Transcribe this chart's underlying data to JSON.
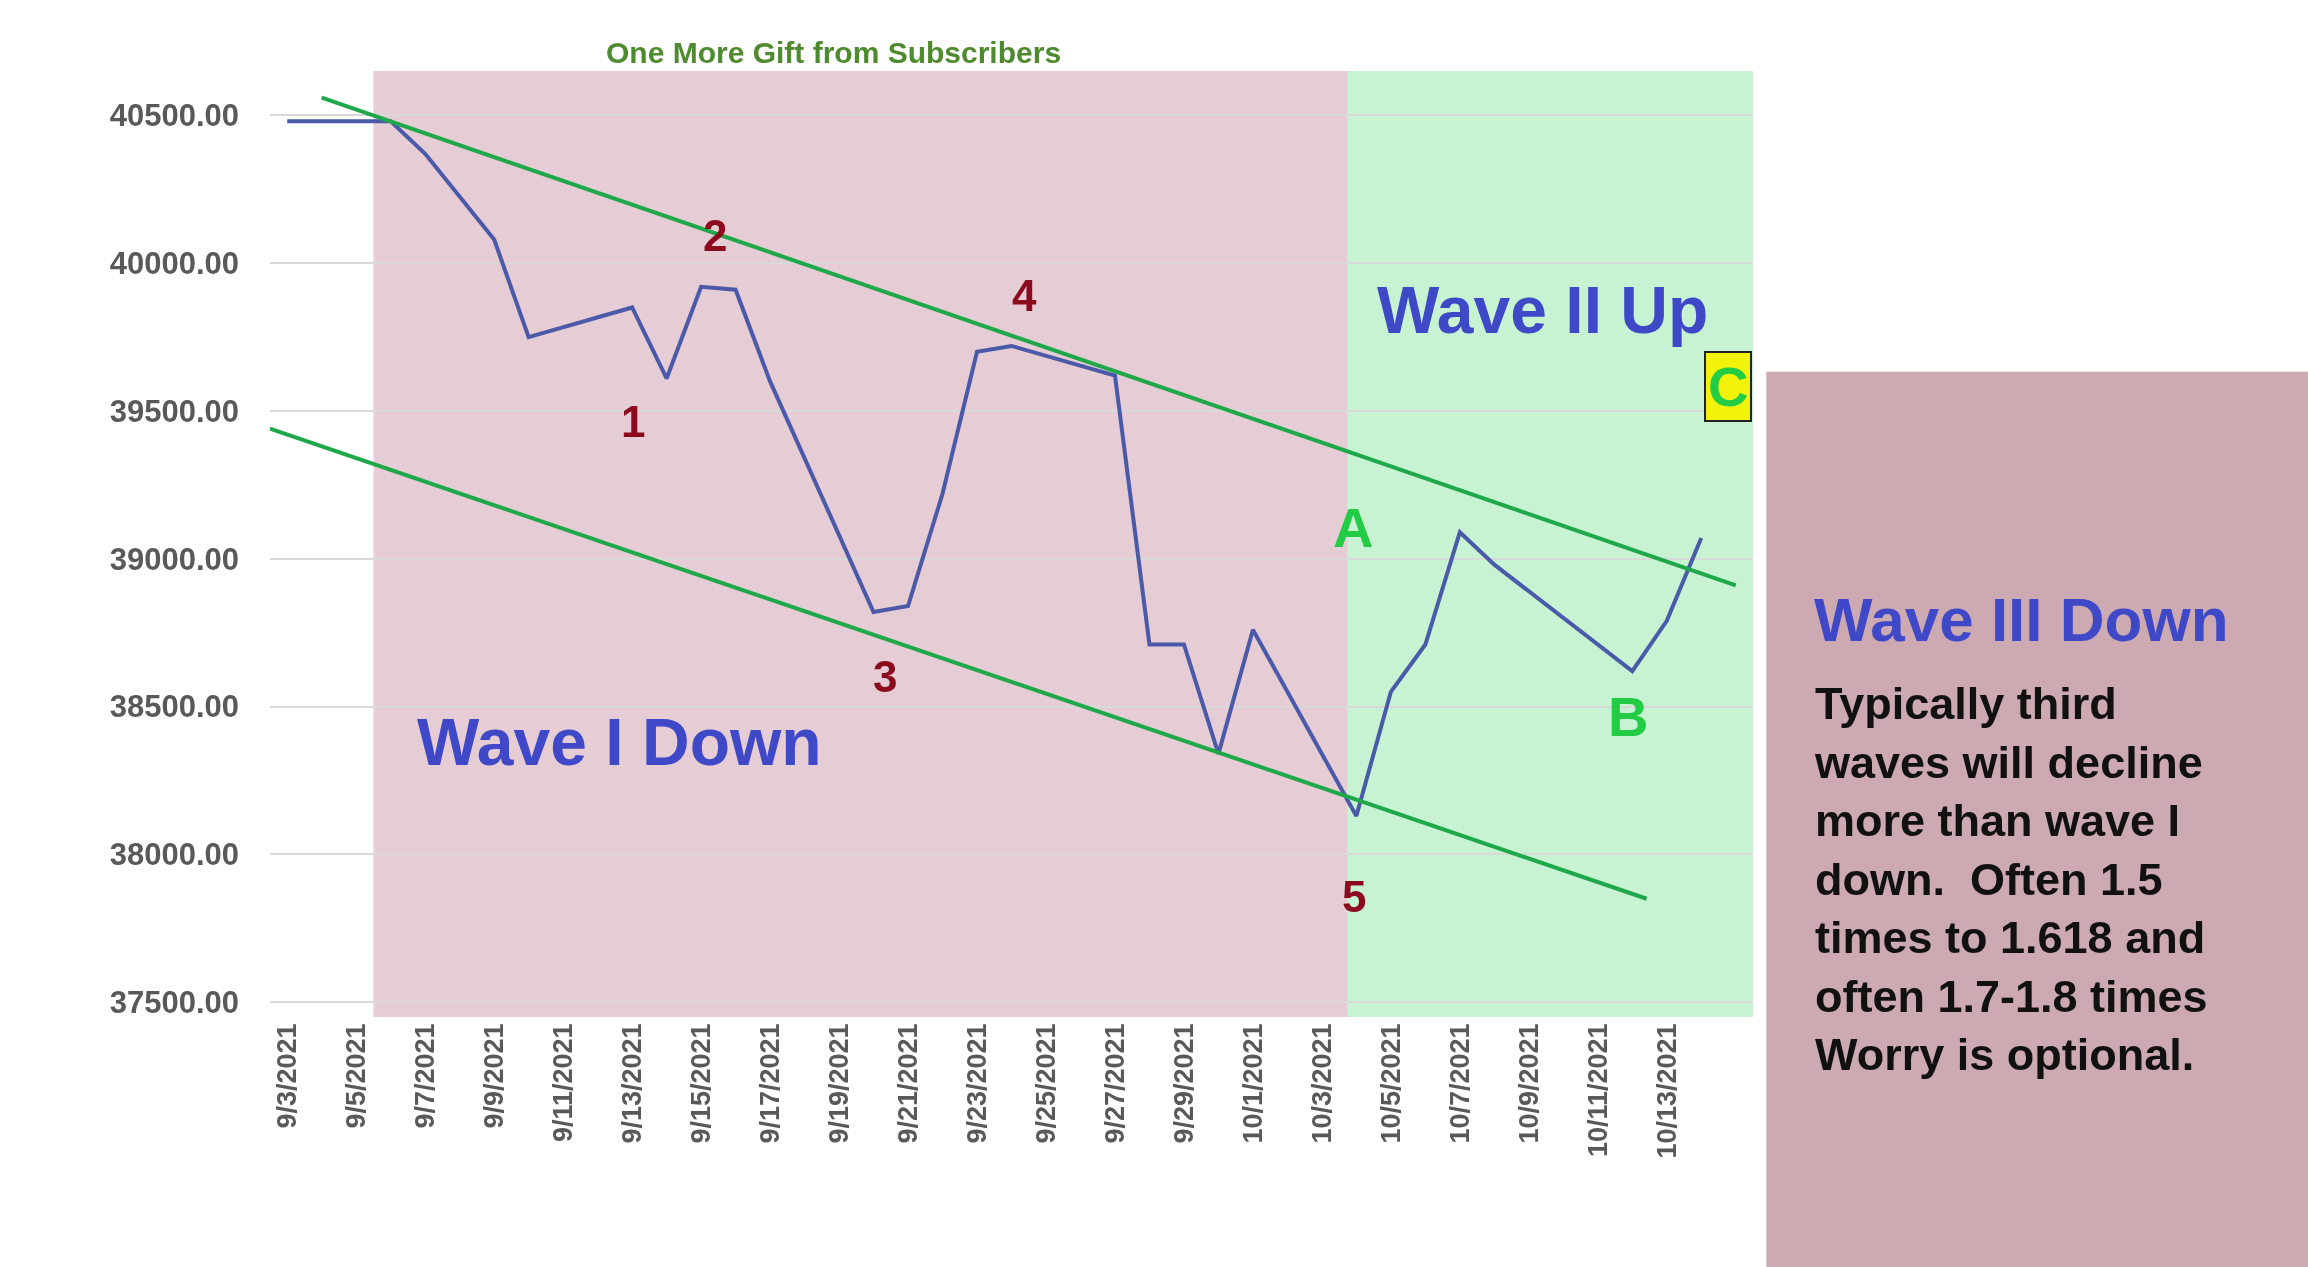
{
  "chart_data": {
    "type": "line",
    "title": "One More Gift from Subscribers",
    "x": [
      "2021-09-03",
      "2021-09-06",
      "2021-09-07",
      "2021-09-09",
      "2021-09-10",
      "2021-09-13",
      "2021-09-14",
      "2021-09-15",
      "2021-09-16",
      "2021-09-17",
      "2021-09-20",
      "2021-09-21",
      "2021-09-22",
      "2021-09-23",
      "2021-09-24",
      "2021-09-27",
      "2021-09-28",
      "2021-09-29",
      "2021-09-30",
      "2021-10-01",
      "2021-10-04",
      "2021-10-05",
      "2021-10-06",
      "2021-10-07",
      "2021-10-08",
      "2021-10-12",
      "2021-10-13",
      "2021-10-14"
    ],
    "series": [
      {
        "color": "#4a5aa8",
        "values": [
          40480,
          40480,
          40370,
          40080,
          39750,
          39850,
          39610,
          39920,
          39910,
          39600,
          38820,
          38840,
          39220,
          39700,
          39720,
          39620,
          38710,
          38710,
          38340,
          38760,
          38130,
          38550,
          38710,
          39090,
          38980,
          38620,
          38790,
          39070
        ]
      },
      {
        "type": "line",
        "x": [
          "2021-09-04",
          "2021-10-15"
        ],
        "color": "#1fa84a",
        "values": [
          40560,
          38910
        ]
      },
      {
        "type": "line",
        "x": [
          "2021-09-02T12:00",
          "2021-10-12T10:00"
        ],
        "color": "#1fa84a",
        "values": [
          39440,
          37850
        ]
      }
    ],
    "xlim": [
      "2021-09-02T12:00",
      "2021-10-15T12:00"
    ],
    "xticks": [
      {
        "value": "2021-09-03",
        "label": "9/3/2021"
      },
      {
        "value": "2021-09-05",
        "label": "9/5/2021"
      },
      {
        "value": "2021-09-07",
        "label": "9/7/2021"
      },
      {
        "value": "2021-09-09",
        "label": "9/9/2021"
      },
      {
        "value": "2021-09-11",
        "label": "9/11/2021"
      },
      {
        "value": "2021-09-13",
        "label": "9/13/2021"
      },
      {
        "value": "2021-09-15",
        "label": "9/15/2021"
      },
      {
        "value": "2021-09-17",
        "label": "9/17/2021"
      },
      {
        "value": "2021-09-19",
        "label": "9/19/2021"
      },
      {
        "value": "2021-09-21",
        "label": "9/21/2021"
      },
      {
        "value": "2021-09-23",
        "label": "9/23/2021"
      },
      {
        "value": "2021-09-25",
        "label": "9/25/2021"
      },
      {
        "value": "2021-09-27",
        "label": "9/27/2021"
      },
      {
        "value": "2021-09-29",
        "label": "9/29/2021"
      },
      {
        "value": "2021-10-01",
        "label": "10/1/2021"
      },
      {
        "value": "2021-10-03",
        "label": "10/3/2021"
      },
      {
        "value": "2021-10-05",
        "label": "10/5/2021"
      },
      {
        "value": "2021-10-07",
        "label": "10/7/2021"
      },
      {
        "value": "2021-10-09",
        "label": "10/9/2021"
      },
      {
        "value": "2021-10-11",
        "label": "10/11/2021"
      },
      {
        "value": "2021-10-13",
        "label": "10/13/2021"
      }
    ],
    "ylim": [
      37450,
      40650
    ],
    "yticks": [
      {
        "value": 37500,
        "label": "37500.00"
      },
      {
        "value": 38000,
        "label": "38000.00"
      },
      {
        "value": 38500,
        "label": "38500.00"
      },
      {
        "value": 39000,
        "label": "39000.00"
      },
      {
        "value": 39500,
        "label": "39500.00"
      },
      {
        "value": 40000,
        "label": "40000.00"
      },
      {
        "value": 40500,
        "label": "40500.00"
      }
    ],
    "grid": "y",
    "bands": [
      {
        "axis": "x",
        "from": "2021-09-05T12:00",
        "to": "2021-10-03T18:00",
        "color": "#e6ccd4"
      },
      {
        "axis": "x",
        "from": "2021-10-03T18:00",
        "to": "2021-10-15T12:00",
        "color": "#c8f3d3"
      }
    ],
    "annotations": [
      "1",
      "2",
      "3",
      "4",
      "5",
      "A",
      "B",
      "C",
      "Wave I Down",
      "Wave II Up",
      "Wave III Down",
      "Typically third\nwaves will decline\nmore than wave I\ndown.  Often 1.5\ntimes to 1.618 and\noften 1.7-1.8 times\nWorry is optional."
    ]
  }
}
